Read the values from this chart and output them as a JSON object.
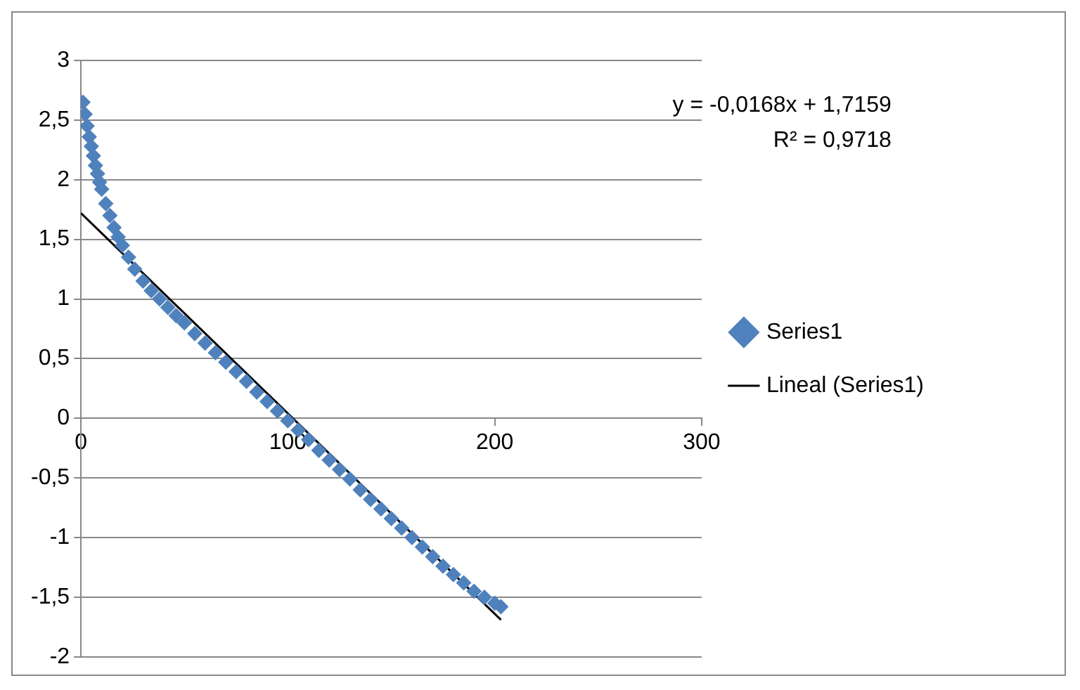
{
  "chart_data": {
    "type": "scatter",
    "xlim": [
      0,
      300
    ],
    "xticks": [
      0,
      100,
      200,
      300
    ],
    "ylim": [
      -2,
      3
    ],
    "yticks": [
      {
        "value": -2,
        "label": "-2"
      },
      {
        "value": -1.5,
        "label": "-1,5"
      },
      {
        "value": -1,
        "label": "-1"
      },
      {
        "value": -0.5,
        "label": "-0,5"
      },
      {
        "value": 0,
        "label": "0"
      },
      {
        "value": 0.5,
        "label": "0,5"
      },
      {
        "value": 1,
        "label": "1"
      },
      {
        "value": 1.5,
        "label": "1,5"
      },
      {
        "value": 2,
        "label": "2"
      },
      {
        "value": 2.5,
        "label": "2,5"
      },
      {
        "value": 3,
        "label": "3"
      }
    ],
    "grid": "y",
    "legend": "right",
    "annotations": [
      "y = -0,0168x + 1,7159",
      "R² = 0,9718"
    ],
    "series": [
      {
        "name": "Series1",
        "color": "#4f81bd",
        "marker": "diamond",
        "x": [
          1,
          2,
          3,
          4,
          5,
          6,
          7,
          8,
          9,
          10,
          12,
          14,
          16,
          18,
          20,
          23,
          26,
          30,
          34,
          38,
          42,
          46,
          50,
          55,
          60,
          65,
          70,
          75,
          80,
          85,
          90,
          95,
          100,
          105,
          110,
          115,
          120,
          125,
          130,
          135,
          140,
          145,
          150,
          155,
          160,
          165,
          170,
          175,
          180,
          185,
          190,
          195,
          200,
          203
        ],
        "values": [
          2.65,
          2.55,
          2.45,
          2.36,
          2.28,
          2.2,
          2.12,
          2.05,
          1.98,
          1.92,
          1.8,
          1.7,
          1.6,
          1.52,
          1.45,
          1.35,
          1.25,
          1.15,
          1.07,
          1.0,
          0.93,
          0.86,
          0.8,
          0.71,
          0.63,
          0.55,
          0.47,
          0.39,
          0.31,
          0.22,
          0.14,
          0.06,
          -0.02,
          -0.1,
          -0.18,
          -0.27,
          -0.35,
          -0.43,
          -0.51,
          -0.6,
          -0.68,
          -0.76,
          -0.84,
          -0.92,
          -1.0,
          -1.08,
          -1.16,
          -1.24,
          -1.31,
          -1.38,
          -1.45,
          -1.5,
          -1.55,
          -1.58
        ]
      },
      {
        "name": "Lineal (Series1)",
        "type": "line",
        "color": "#000000",
        "marker": "none",
        "line_style": "solid",
        "x": [
          0,
          203
        ],
        "values": [
          1.72,
          -1.69
        ]
      }
    ]
  }
}
